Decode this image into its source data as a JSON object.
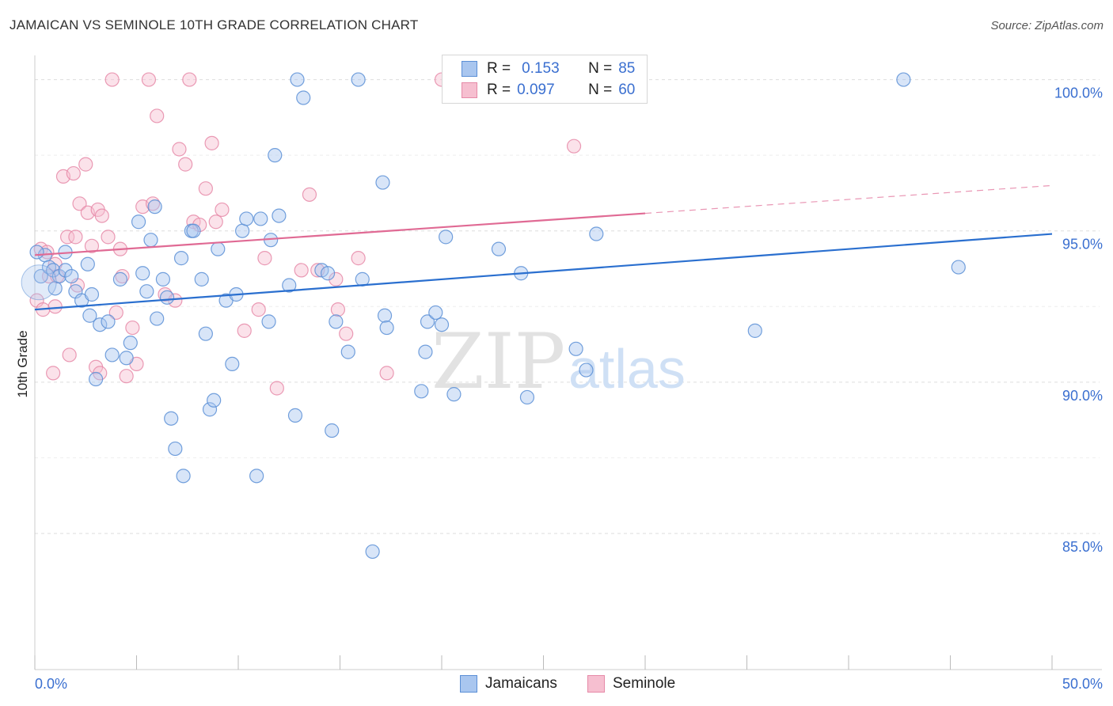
{
  "header": {
    "title": "JAMAICAN VS SEMINOLE 10TH GRADE CORRELATION CHART",
    "source": "Source: ZipAtlas.com"
  },
  "watermark": {
    "zip": "ZIP",
    "atlas": "atlas"
  },
  "colors": {
    "blue_fill": "#a9c6ef",
    "blue_stroke": "#5b8fd6",
    "blue_line": "#2a6fcf",
    "pink_fill": "#f6bfd0",
    "pink_stroke": "#e68aa8",
    "pink_line": "#e06a94",
    "axis_text": "#3a6fd0",
    "grid": "#dddddd"
  },
  "legend": {
    "rows": [
      {
        "r_label": "R =",
        "r_value": "0.153",
        "n_label": "N =",
        "n_value": "85"
      },
      {
        "r_label": "R =",
        "r_value": "0.097",
        "n_label": "N =",
        "n_value": "60"
      }
    ]
  },
  "bottom_legend": {
    "jamaicans": "Jamaicans",
    "seminole": "Seminole"
  },
  "chart_data": {
    "type": "scatter",
    "ylabel": "10th Grade",
    "xlim": [
      0,
      50
    ],
    "ylim": [
      80.5,
      100.8
    ],
    "x_tick_labels": [
      "0.0%",
      "50.0%"
    ],
    "y_ticks": [
      85,
      90,
      95,
      100
    ],
    "y_tick_labels": [
      "85.0%",
      "90.0%",
      "95.0%",
      "100.0%"
    ],
    "grid": "horizontal dashed",
    "series": [
      {
        "name": "Jamaicans",
        "trend": {
          "x0": 0,
          "y0": 92.4,
          "x1": 50,
          "y1": 94.9,
          "dashed_from": null
        },
        "points": [
          [
            0.3,
            93.5
          ],
          [
            0.5,
            94.2
          ],
          [
            0.7,
            93.8
          ],
          [
            0.9,
            93.7
          ],
          [
            1.0,
            93.1
          ],
          [
            1.2,
            93.5
          ],
          [
            1.5,
            93.7
          ],
          [
            1.5,
            94.3
          ],
          [
            1.8,
            93.5
          ],
          [
            2.0,
            93.0
          ],
          [
            2.3,
            92.7
          ],
          [
            2.6,
            93.9
          ],
          [
            2.7,
            92.2
          ],
          [
            2.8,
            92.9
          ],
          [
            3.0,
            90.1
          ],
          [
            3.2,
            91.9
          ],
          [
            3.6,
            92.0
          ],
          [
            3.8,
            90.9
          ],
          [
            4.2,
            93.4
          ],
          [
            4.5,
            90.8
          ],
          [
            4.7,
            91.3
          ],
          [
            5.1,
            95.3
          ],
          [
            5.3,
            93.6
          ],
          [
            5.5,
            93.0
          ],
          [
            5.7,
            94.7
          ],
          [
            5.9,
            95.8
          ],
          [
            6.0,
            92.1
          ],
          [
            6.3,
            93.4
          ],
          [
            6.5,
            92.8
          ],
          [
            6.7,
            88.8
          ],
          [
            6.9,
            87.8
          ],
          [
            7.2,
            94.1
          ],
          [
            7.3,
            86.9
          ],
          [
            7.7,
            95.0
          ],
          [
            7.8,
            95.0
          ],
          [
            8.2,
            93.4
          ],
          [
            8.4,
            91.6
          ],
          [
            8.6,
            89.1
          ],
          [
            8.8,
            89.4
          ],
          [
            9.0,
            94.4
          ],
          [
            9.4,
            92.7
          ],
          [
            9.7,
            90.6
          ],
          [
            9.9,
            92.9
          ],
          [
            10.2,
            95.0
          ],
          [
            10.4,
            95.4
          ],
          [
            10.9,
            86.9
          ],
          [
            11.1,
            95.4
          ],
          [
            11.5,
            92.0
          ],
          [
            11.6,
            94.7
          ],
          [
            11.8,
            97.5
          ],
          [
            12.0,
            95.5
          ],
          [
            12.5,
            93.2
          ],
          [
            12.8,
            88.9
          ],
          [
            12.9,
            100.0
          ],
          [
            13.2,
            99.4
          ],
          [
            14.1,
            93.7
          ],
          [
            14.4,
            93.6
          ],
          [
            14.6,
            88.4
          ],
          [
            14.8,
            92.0
          ],
          [
            15.9,
            100.0
          ],
          [
            15.4,
            91.0
          ],
          [
            16.1,
            93.4
          ],
          [
            16.6,
            84.4
          ],
          [
            17.2,
            92.2
          ],
          [
            17.3,
            91.8
          ],
          [
            17.1,
            96.6
          ],
          [
            19.0,
            89.7
          ],
          [
            19.2,
            91.0
          ],
          [
            19.3,
            92.0
          ],
          [
            19.7,
            92.3
          ],
          [
            20.0,
            91.9
          ],
          [
            20.2,
            94.8
          ],
          [
            20.6,
            89.6
          ],
          [
            22.8,
            94.4
          ],
          [
            23.9,
            93.6
          ],
          [
            24.2,
            89.5
          ],
          [
            26.6,
            91.1
          ],
          [
            27.1,
            90.4
          ],
          [
            27.5,
            100.0
          ],
          [
            27.6,
            94.9
          ],
          [
            28.0,
            100.0
          ],
          [
            35.4,
            91.7
          ],
          [
            42.7,
            100.0
          ],
          [
            45.4,
            93.8
          ],
          [
            0.1,
            94.3
          ]
        ]
      },
      {
        "name": "Seminole",
        "trend": {
          "x0": 0,
          "y0": 94.2,
          "x1": 50,
          "y1": 96.5,
          "dashed_from": 30
        },
        "points": [
          [
            0.1,
            92.7
          ],
          [
            0.3,
            94.4
          ],
          [
            0.4,
            92.4
          ],
          [
            0.7,
            93.5
          ],
          [
            0.9,
            90.3
          ],
          [
            1.0,
            92.5
          ],
          [
            1.1,
            93.5
          ],
          [
            1.4,
            96.8
          ],
          [
            1.6,
            94.8
          ],
          [
            1.7,
            90.9
          ],
          [
            1.9,
            96.9
          ],
          [
            2.0,
            94.8
          ],
          [
            2.2,
            95.9
          ],
          [
            2.5,
            97.2
          ],
          [
            2.6,
            95.6
          ],
          [
            2.8,
            94.5
          ],
          [
            3.0,
            90.5
          ],
          [
            3.1,
            95.7
          ],
          [
            3.2,
            90.3
          ],
          [
            3.3,
            95.5
          ],
          [
            3.6,
            94.8
          ],
          [
            3.8,
            100.0
          ],
          [
            4.0,
            92.3
          ],
          [
            4.2,
            94.4
          ],
          [
            4.3,
            93.5
          ],
          [
            4.5,
            90.2
          ],
          [
            4.8,
            91.8
          ],
          [
            5.0,
            90.6
          ],
          [
            5.3,
            95.8
          ],
          [
            5.6,
            100.0
          ],
          [
            5.8,
            95.9
          ],
          [
            6.0,
            98.8
          ],
          [
            6.4,
            92.9
          ],
          [
            6.9,
            92.7
          ],
          [
            7.1,
            97.7
          ],
          [
            7.4,
            97.2
          ],
          [
            7.6,
            100.0
          ],
          [
            7.8,
            95.3
          ],
          [
            8.1,
            95.2
          ],
          [
            8.4,
            96.4
          ],
          [
            8.7,
            97.9
          ],
          [
            8.9,
            95.3
          ],
          [
            9.2,
            95.7
          ],
          [
            10.3,
            91.7
          ],
          [
            11.0,
            92.4
          ],
          [
            11.3,
            94.1
          ],
          [
            11.9,
            89.8
          ],
          [
            13.1,
            93.7
          ],
          [
            13.5,
            96.2
          ],
          [
            13.9,
            93.7
          ],
          [
            14.8,
            93.4
          ],
          [
            14.9,
            92.4
          ],
          [
            15.3,
            91.6
          ],
          [
            15.9,
            94.1
          ],
          [
            17.3,
            90.3
          ],
          [
            20.0,
            100.0
          ],
          [
            26.5,
            97.8
          ],
          [
            0.6,
            94.3
          ],
          [
            1.0,
            93.9
          ],
          [
            2.1,
            93.2
          ]
        ]
      }
    ]
  }
}
